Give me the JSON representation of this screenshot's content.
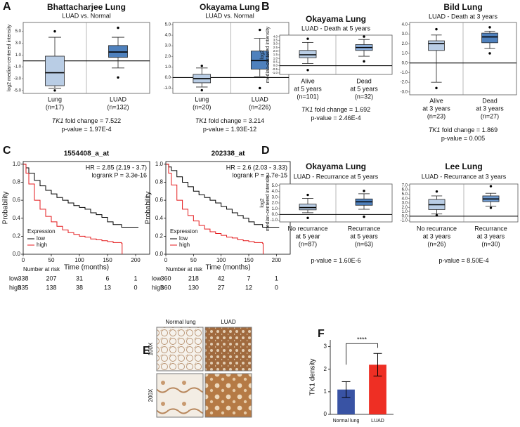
{
  "panel_labels": [
    "A",
    "B",
    "C",
    "D",
    "E",
    "F"
  ],
  "chart_data": [
    {
      "type": "box",
      "title": "Bhattacharjee Lung",
      "subtitle": "LUAD vs. Normal",
      "ylabel": [
        "log2 median-centered intensity"
      ],
      "ylim": [
        -5.5,
        6.5
      ],
      "yticks": [
        {
          "value": 5,
          "label": "5.0"
        },
        {
          "value": 3,
          "label": "3.0"
        },
        {
          "value": 1,
          "label": "1.0"
        },
        {
          "value": -1,
          "label": "-1.0"
        },
        {
          "value": -3,
          "label": "-3.0"
        },
        {
          "value": -5,
          "label": "-5.0"
        }
      ],
      "hline": 0,
      "categories": [
        "Lung",
        "LUAD"
      ],
      "category_details": [
        [
          "(n=17)"
        ],
        [
          "(n=132)"
        ]
      ],
      "box_colors": [
        "#b9cde5",
        "#4f81bd"
      ],
      "boxes": [
        {
          "min": -4.6,
          "q1": -4.2,
          "median": -2.0,
          "q3": 0.8,
          "max": 4.0,
          "outliers": [
            5.0,
            -5.0
          ]
        },
        {
          "min": -1.2,
          "q1": 0.6,
          "median": 1.5,
          "q3": 2.6,
          "max": 4.0,
          "outliers": [
            5.6,
            -2.8
          ]
        }
      ],
      "gene": "TK1",
      "footnotes": [
        " fold change = 7.522",
        "p-value = 1.97E-4"
      ]
    },
    {
      "type": "box",
      "title": "Okayama Lung",
      "subtitle": "LUAD vs. Normal",
      "ylim": [
        -1.5,
        5.2
      ],
      "yticks": [
        {
          "value": 5,
          "label": "5.0"
        },
        {
          "value": 4,
          "label": "4.0"
        },
        {
          "value": 3,
          "label": "3.0"
        },
        {
          "value": 2,
          "label": "2.0"
        },
        {
          "value": 1,
          "label": "1.0"
        },
        {
          "value": 0,
          "label": "0.0"
        },
        {
          "value": -1,
          "label": "-1.0"
        }
      ],
      "hline": 0,
      "categories": [
        "Lung",
        "LUAD"
      ],
      "category_details": [
        [
          "(n=20)"
        ],
        [
          "(n=226)"
        ]
      ],
      "box_colors": [
        "#b9cde5",
        "#4f81bd"
      ],
      "boxes": [
        {
          "min": -0.9,
          "q1": -0.5,
          "median": -0.1,
          "q3": 0.3,
          "max": 0.9,
          "outliers": [
            1.1,
            -1.2
          ]
        },
        {
          "min": 0.1,
          "q1": 0.8,
          "median": 1.6,
          "q3": 2.5,
          "max": 3.7,
          "outliers": [
            4.5,
            -1.0
          ]
        }
      ],
      "gene": "TK1",
      "footnotes": [
        " fold change = 3.214",
        "p-value = 1.93E-12"
      ]
    },
    {
      "type": "box",
      "title": "Okayama Lung",
      "subtitle": "LUAD - Death at 5 years",
      "ylabel": [
        "log2",
        "median-centered intensity"
      ],
      "ylim": [
        -1.2,
        4.2
      ],
      "yticks": [
        {
          "value": 4,
          "label": "4.0"
        },
        3.5,
        {
          "value": 3,
          "label": "3.0"
        },
        2.5,
        {
          "value": 2,
          "label": "2.0"
        },
        1.5,
        {
          "value": 1,
          "label": "1.0"
        },
        0.5,
        {
          "value": 0,
          "label": "0.0"
        },
        -0.5,
        {
          "value": -1,
          "label": "-1.0"
        }
      ],
      "hline": 0,
      "categories": [
        "Alive",
        "Dead"
      ],
      "category_details": [
        [
          "at 5 years",
          "(n=101)"
        ],
        [
          "at 5 years",
          "(n=32)"
        ]
      ],
      "box_colors": [
        "#b9cde5",
        "#8fb1dc"
      ],
      "boxes": [
        {
          "min": 0.3,
          "q1": 1.1,
          "median": 1.5,
          "q3": 2.1,
          "max": 3.2,
          "outliers": [
            3.7,
            -0.6
          ]
        },
        {
          "min": 1.3,
          "q1": 2.1,
          "median": 2.5,
          "q3": 2.9,
          "max": 3.6,
          "outliers": [
            4.0,
            0.6
          ]
        }
      ],
      "gene": "TK1",
      "footnotes": [
        " fold change = 1.692",
        "p-value = 2.46E-4"
      ]
    },
    {
      "type": "box",
      "title": "Bild Lung",
      "subtitle": "LUAD - Death at 3 years",
      "ylim": [
        -3.3,
        4.2
      ],
      "yticks": [
        {
          "value": 4,
          "label": "4.0"
        },
        {
          "value": 3,
          "label": "3.0"
        },
        {
          "value": 2,
          "label": "2.0"
        },
        {
          "value": 1,
          "label": "1.0"
        },
        {
          "value": 0,
          "label": "0.0"
        },
        {
          "value": -1,
          "label": "-1.0"
        },
        {
          "value": -2,
          "label": "-2.0"
        },
        {
          "value": -3,
          "label": "-3.0"
        }
      ],
      "hline": 0,
      "categories": [
        "Alive",
        "Dead"
      ],
      "category_details": [
        [
          "at 3 years",
          "(n=23)"
        ],
        [
          "at 3 years",
          "(n=27)"
        ]
      ],
      "box_colors": [
        "#b9cde5",
        "#4f81bd"
      ],
      "boxes": [
        {
          "min": -2.0,
          "q1": 1.3,
          "median": 2.0,
          "q3": 2.3,
          "max": 2.9,
          "outliers": [
            3.5,
            -2.6
          ]
        },
        {
          "min": 1.5,
          "q1": 2.1,
          "median": 2.7,
          "q3": 3.1,
          "max": 3.3,
          "outliers": [
            3.7,
            1.0
          ]
        }
      ],
      "gene": "TK1",
      "footnotes": [
        " fold change = 1.869",
        "p-value = 0.005"
      ]
    },
    {
      "type": "survival",
      "title": "1554408_a_at",
      "xlabel": "Time (months)",
      "ylabel": "Probability",
      "xlim": [
        0,
        225
      ],
      "xticks": [
        0,
        50,
        100,
        150,
        200
      ],
      "ylim": [
        0,
        1.03
      ],
      "yticks": [
        {
          "value": 0,
          "label": "0.0"
        },
        0.2,
        0.4,
        0.6,
        0.8,
        {
          "value": 1,
          "label": "1.0"
        }
      ],
      "annotations": [
        "HR = 2.85 (2.19 - 3.7)",
        "logrank P = 3.3e-16"
      ],
      "legend_title": "Expression",
      "risk_title": "Number at risk",
      "series": [
        {
          "name": "low",
          "color": "#000000",
          "x": [
            0,
            5,
            10,
            20,
            30,
            40,
            50,
            60,
            70,
            80,
            90,
            100,
            110,
            120,
            130,
            140,
            150,
            160,
            175,
            205
          ],
          "y": [
            1,
            0.96,
            0.9,
            0.82,
            0.76,
            0.71,
            0.67,
            0.63,
            0.6,
            0.57,
            0.54,
            0.52,
            0.5,
            0.46,
            0.44,
            0.41,
            0.36,
            0.33,
            0.3,
            0.3
          ],
          "at_risk": [
            338,
            207,
            31,
            6,
            1
          ]
        },
        {
          "name": "high",
          "color": "#e41a1c",
          "x": [
            0,
            5,
            10,
            20,
            30,
            40,
            50,
            60,
            70,
            80,
            90,
            100,
            110,
            120,
            130,
            140,
            150,
            160,
            175,
            176
          ],
          "y": [
            1,
            0.9,
            0.78,
            0.6,
            0.5,
            0.42,
            0.36,
            0.31,
            0.27,
            0.24,
            0.22,
            0.2,
            0.19,
            0.17,
            0.16,
            0.15,
            0.14,
            0.13,
            0.12,
            0
          ],
          "at_risk": [
            335,
            138,
            38,
            13,
            0
          ]
        }
      ]
    },
    {
      "type": "survival",
      "title": "202338_at",
      "xlabel": "Time (months)",
      "ylabel": "Probability",
      "xlim": [
        0,
        225
      ],
      "xticks": [
        0,
        50,
        100,
        150,
        200
      ],
      "ylim": [
        0,
        1.03
      ],
      "yticks": [
        {
          "value": 0,
          "label": "0.0"
        },
        0.2,
        0.4,
        0.6,
        0.8,
        {
          "value": 1,
          "label": "1.0"
        }
      ],
      "annotations": [
        "HR = 2.6 (2.03 - 3.33)",
        "logrank P = 2.7e-15"
      ],
      "series": [
        {
          "name": "low",
          "color": "#000000",
          "x": [
            0,
            5,
            10,
            20,
            30,
            40,
            50,
            60,
            70,
            80,
            90,
            100,
            110,
            120,
            130,
            140,
            150,
            160,
            175,
            205
          ],
          "y": [
            1,
            0.97,
            0.93,
            0.86,
            0.8,
            0.75,
            0.7,
            0.66,
            0.63,
            0.6,
            0.57,
            0.53,
            0.5,
            0.46,
            0.43,
            0.4,
            0.36,
            0.33,
            0.3,
            0.3
          ],
          "at_risk": [
            360,
            218,
            42,
            7,
            1
          ]
        },
        {
          "name": "high",
          "color": "#e41a1c",
          "x": [
            0,
            5,
            10,
            20,
            30,
            40,
            50,
            60,
            70,
            80,
            90,
            100,
            110,
            120,
            130,
            140,
            150,
            160,
            175,
            176
          ],
          "y": [
            1,
            0.9,
            0.77,
            0.6,
            0.5,
            0.43,
            0.37,
            0.32,
            0.28,
            0.25,
            0.23,
            0.21,
            0.19,
            0.18,
            0.16,
            0.15,
            0.14,
            0.13,
            0.12,
            0
          ],
          "at_risk": [
            360,
            130,
            27,
            12,
            0
          ]
        }
      ]
    },
    {
      "type": "box",
      "title": "Okayama Lung",
      "subtitle": "LUAD - Recurrance at 5 years",
      "ylabel": [
        "log2",
        "median-centered intensity"
      ],
      "ylim": [
        -1.3,
        5.3
      ],
      "yticks": [
        {
          "value": 5,
          "label": "5.0"
        },
        {
          "value": 4,
          "label": "4.0"
        },
        {
          "value": 3,
          "label": "3.0"
        },
        {
          "value": 2,
          "label": "2.0"
        },
        {
          "value": 1,
          "label": "1.0"
        },
        {
          "value": 0,
          "label": "0.0"
        },
        {
          "value": -1,
          "label": "-1.0"
        }
      ],
      "hline": 0,
      "categories": [
        "No recurrance",
        "Recurrance"
      ],
      "category_details": [
        [
          "at 5 year",
          "(n=87)"
        ],
        [
          "at 5 years",
          "(n=63)"
        ]
      ],
      "box_colors": [
        "#b9cde5",
        "#4f81bd"
      ],
      "boxes": [
        {
          "min": 0.3,
          "q1": 0.8,
          "median": 1.2,
          "q3": 1.8,
          "max": 2.8,
          "outliers": [
            3.4,
            -0.6
          ]
        },
        {
          "min": 0.9,
          "q1": 1.6,
          "median": 2.2,
          "q3": 2.7,
          "max": 3.6,
          "outliers": [
            4.1,
            -0.4
          ]
        }
      ],
      "footnotes": [
        "p-value = 1.60E-6"
      ]
    },
    {
      "type": "box",
      "title": "Lee Lung",
      "subtitle": "LUAD - Recurrance at 3 years",
      "ylim": [
        -1.3,
        7.3
      ],
      "yticks": [
        {
          "value": 7,
          "label": "7.0"
        },
        {
          "value": 6,
          "label": "6.0"
        },
        {
          "value": 5,
          "label": "5.0"
        },
        {
          "value": 4,
          "label": "4.0"
        },
        {
          "value": 3,
          "label": "3.0"
        },
        {
          "value": 2,
          "label": "2.0"
        },
        {
          "value": 1,
          "label": "1.0"
        },
        {
          "value": 0,
          "label": "0.0"
        },
        {
          "value": -1,
          "label": "-1.0"
        }
      ],
      "hline": 0,
      "categories": [
        "No recurrance",
        "Recurrance"
      ],
      "category_details": [
        [
          "at 3 years",
          "(n=26)"
        ],
        [
          "at 3 years",
          "(n=30)"
        ]
      ],
      "box_colors": [
        "#b9cde5",
        "#6f9bd1"
      ],
      "boxes": [
        {
          "min": 0.5,
          "q1": 1.5,
          "median": 2.6,
          "q3": 3.8,
          "max": 4.6,
          "outliers": [
            5.6,
            0.2
          ]
        },
        {
          "min": 2.3,
          "q1": 3.3,
          "median": 3.9,
          "q3": 4.6,
          "max": 5.2,
          "outliers": [
            6.8,
            1.9
          ]
        }
      ],
      "footnotes": [
        "p-value = 8.50E-4"
      ]
    },
    {
      "type": "bar",
      "ylabel": "TK1 density",
      "categories": [
        "Normal lung",
        "LUAD"
      ],
      "values": [
        1.1,
        2.2
      ],
      "errors": [
        0.35,
        0.5
      ],
      "colors": [
        "#3953a4",
        "#ee2f24"
      ],
      "ylim": [
        0,
        3.3
      ],
      "yticks": [
        0,
        1,
        2,
        3
      ],
      "significance": "****"
    }
  ],
  "ihc": {
    "columns": [
      "Normal lung",
      "LUAD"
    ],
    "rows": [
      "100X",
      "200X"
    ]
  }
}
